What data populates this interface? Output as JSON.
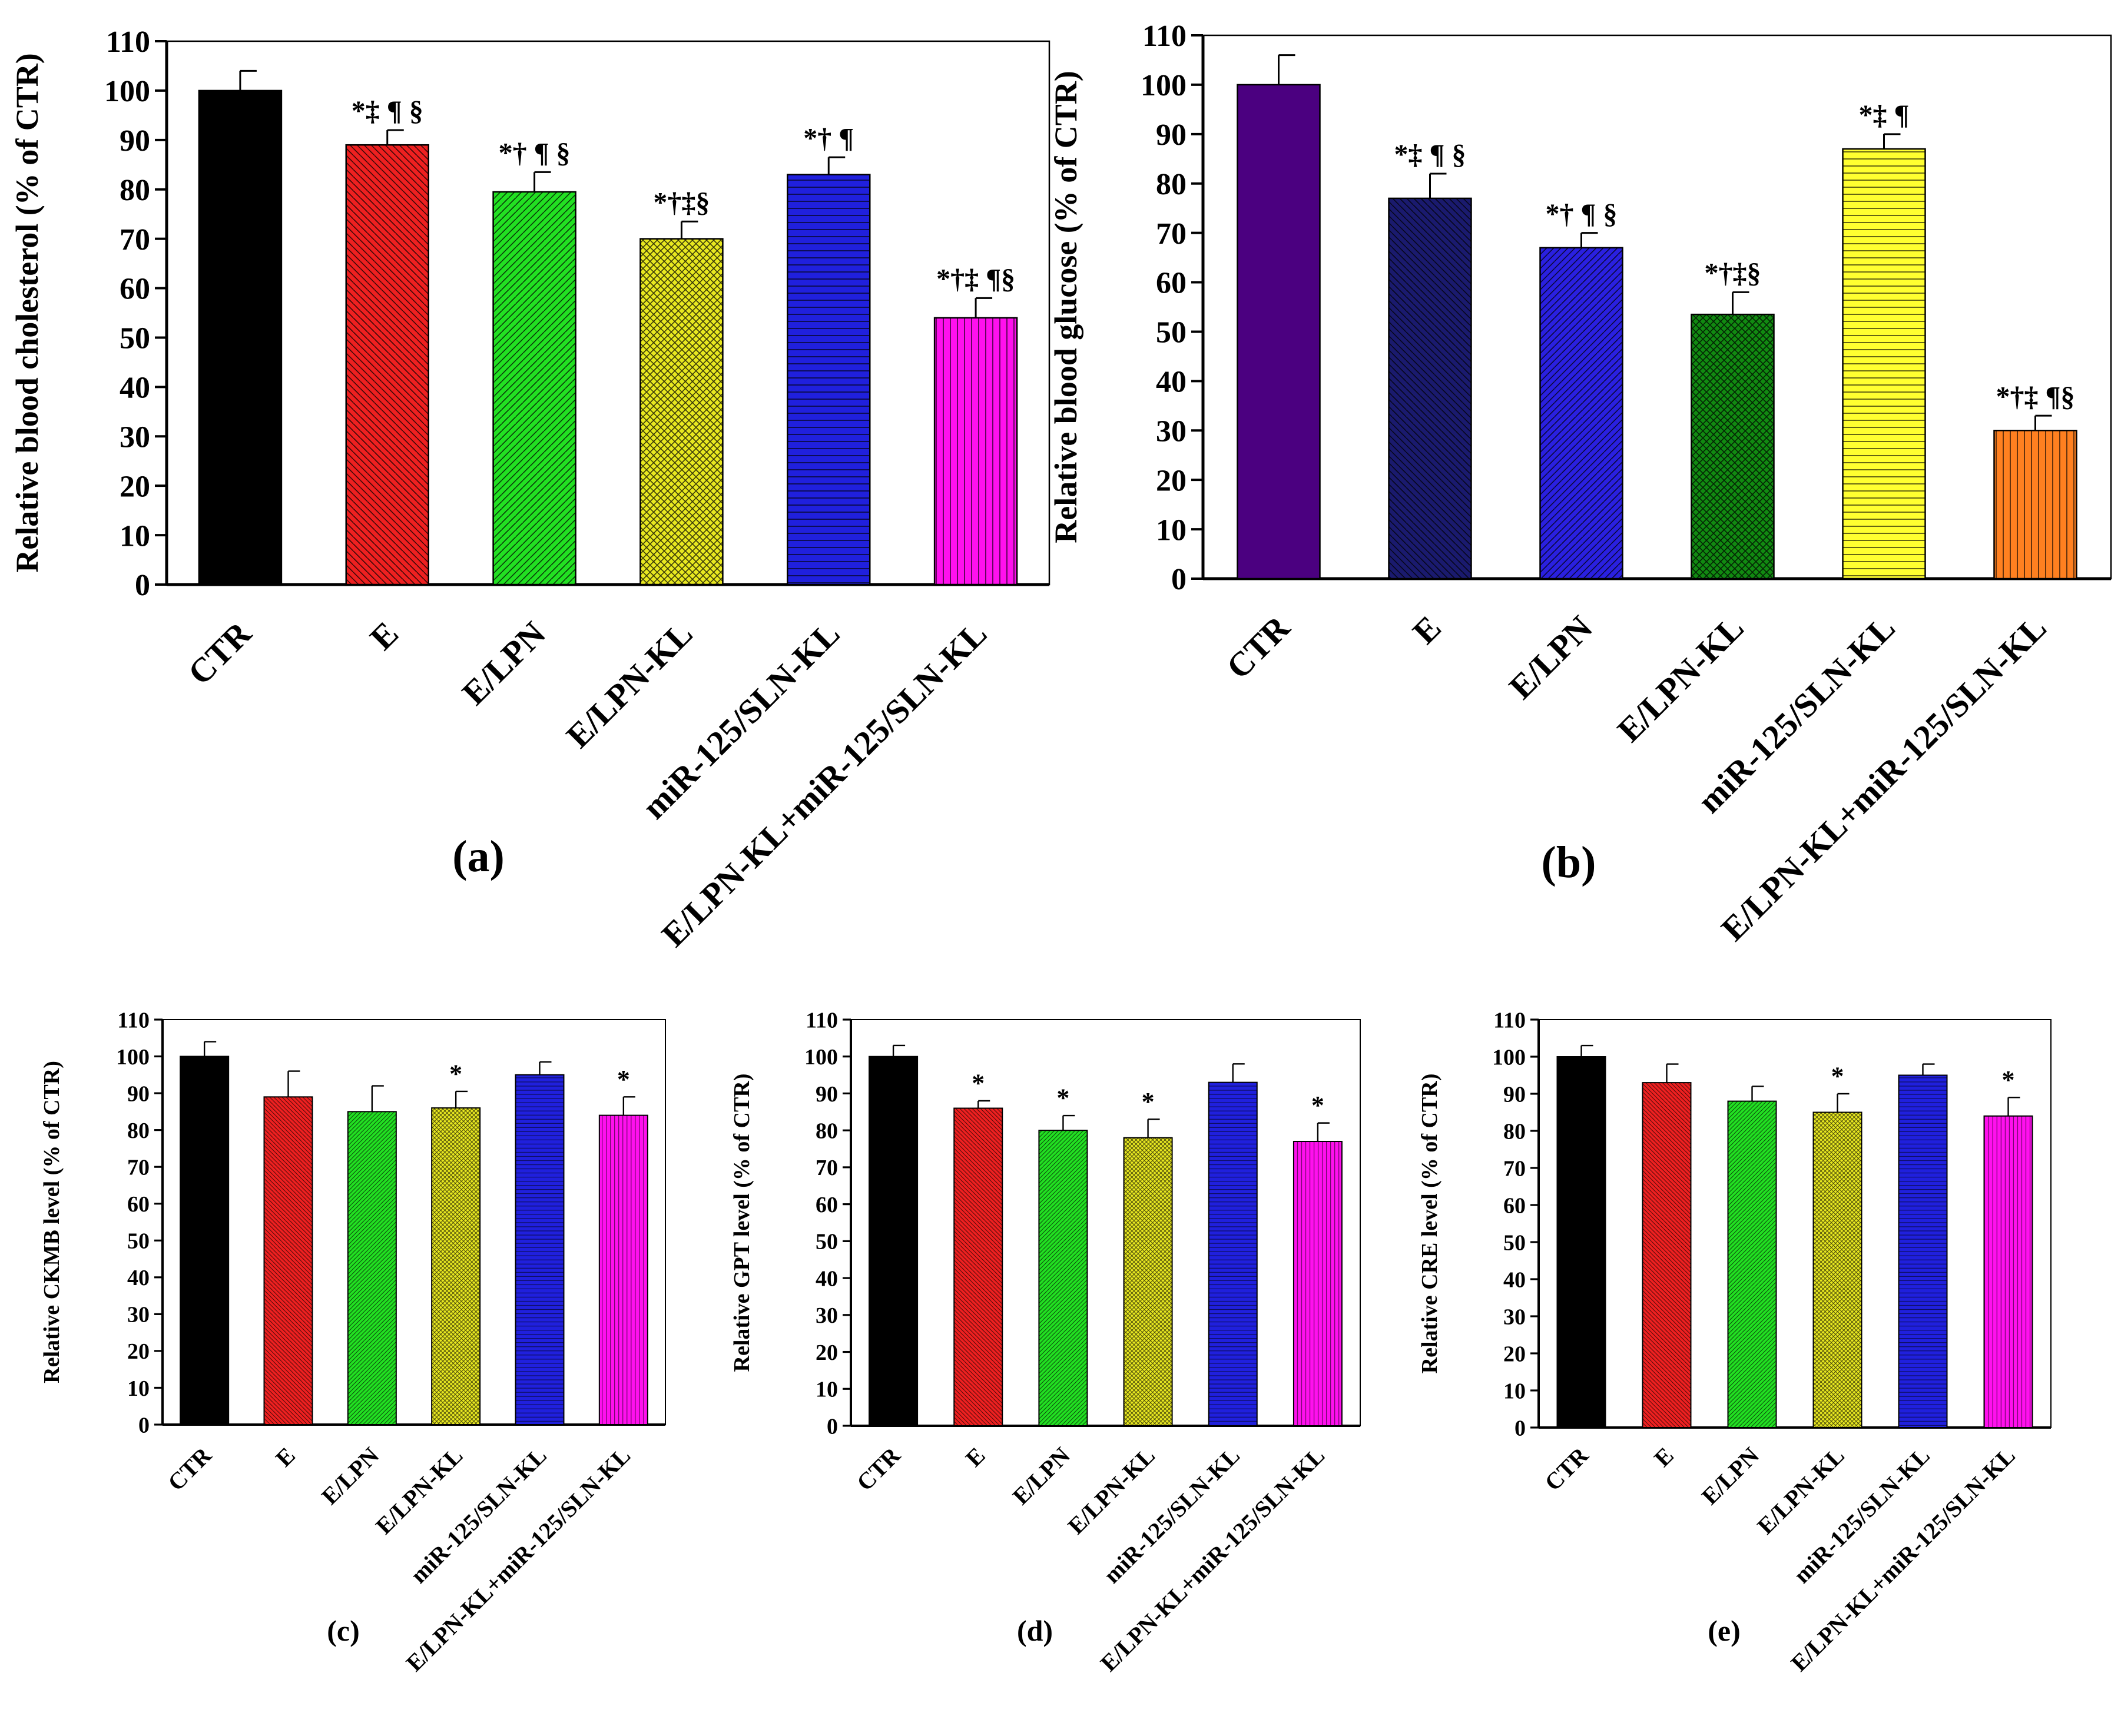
{
  "chart_data": [
    {
      "id": "a",
      "panel_label": "(a)",
      "type": "bar",
      "title": "",
      "xlabel": "",
      "ylabel": "Relative blood cholesterol (% of CTR)",
      "ylim": [
        0,
        110
      ],
      "yticks": [
        "0",
        "10",
        "20",
        "30",
        "40",
        "50",
        "60",
        "70",
        "80",
        "90",
        "100",
        "110"
      ],
      "categories": [
        "CTR",
        "E",
        "E/LPN",
        "E/LPN-KL",
        "miR-125/SLN-KL",
        "E/LPN-KL+miR-125/SLN-KL"
      ],
      "values": [
        100,
        89,
        79.5,
        70,
        83,
        54
      ],
      "errors": [
        4,
        3,
        4,
        3.5,
        3.5,
        4
      ],
      "annotations": [
        "",
        "*‡ ¶ §",
        "*† ¶ §",
        "*†‡§",
        "*† ¶",
        "*†‡ ¶§"
      ],
      "colors": [
        "#000000",
        "#ee2020",
        "#22e022",
        "#e8e820",
        "#2020dd",
        "#ff10ee"
      ],
      "patterns": [
        "solid",
        "diag-back",
        "diag-fwd",
        "crosshatch",
        "horizontal",
        "vertical"
      ]
    },
    {
      "id": "b",
      "panel_label": "(b)",
      "type": "bar",
      "title": "",
      "xlabel": "",
      "ylabel": "Relative blood glucose (% of CTR)",
      "ylim": [
        0,
        110
      ],
      "yticks": [
        "0",
        "10",
        "20",
        "30",
        "40",
        "50",
        "60",
        "70",
        "80",
        "90",
        "100",
        "110"
      ],
      "categories": [
        "CTR",
        "E",
        "E/LPN",
        "E/LPN-KL",
        "miR-125/SLN-KL",
        "E/LPN-KL+miR-125/SLN-KL"
      ],
      "values": [
        100,
        77,
        67,
        53.5,
        87,
        30
      ],
      "errors": [
        6,
        5,
        3,
        4.5,
        3,
        3
      ],
      "annotations": [
        "",
        "*‡ ¶ §",
        "*† ¶ §",
        "*†‡§",
        "*‡ ¶",
        "*†‡ ¶§"
      ],
      "colors": [
        "#4b0080",
        "#1a1a6e",
        "#2a20e0",
        "#118a11",
        "#ffff30",
        "#ff8020"
      ],
      "patterns": [
        "solid",
        "diag-back",
        "diag-fwd",
        "crosshatch",
        "horizontal",
        "vertical"
      ]
    },
    {
      "id": "c",
      "panel_label": "(c)",
      "type": "bar",
      "title": "",
      "xlabel": "",
      "ylabel": "Relative CKMB level (% of CTR)",
      "ylim": [
        0,
        110
      ],
      "yticks": [
        "0",
        "10",
        "20",
        "30",
        "40",
        "50",
        "60",
        "70",
        "80",
        "90",
        "100",
        "110"
      ],
      "categories": [
        "CTR",
        "E",
        "E/LPN",
        "E/LPN-KL",
        "miR-125/SLN-KL",
        "E/LPN-KL+miR-125/SLN-KL"
      ],
      "values": [
        100,
        89,
        85,
        86,
        95,
        84
      ],
      "errors": [
        4,
        7,
        7,
        4.5,
        3.5,
        5
      ],
      "annotations": [
        "",
        "",
        "",
        "*",
        "",
        "*"
      ],
      "colors": [
        "#000000",
        "#ee2020",
        "#22e022",
        "#e8e820",
        "#2020dd",
        "#ff10ee"
      ],
      "patterns": [
        "solid",
        "diag-back",
        "diag-fwd",
        "crosshatch",
        "horizontal",
        "vertical"
      ]
    },
    {
      "id": "d",
      "panel_label": "(d)",
      "type": "bar",
      "title": "",
      "xlabel": "",
      "ylabel": "Relative GPT level (% of CTR)",
      "ylim": [
        0,
        110
      ],
      "yticks": [
        "0",
        "10",
        "20",
        "30",
        "40",
        "50",
        "60",
        "70",
        "80",
        "90",
        "100",
        "110"
      ],
      "categories": [
        "CTR",
        "E",
        "E/LPN",
        "E/LPN-KL",
        "miR-125/SLN-KL",
        "E/LPN-KL+miR-125/SLN-KL"
      ],
      "values": [
        100,
        86,
        80,
        78,
        93,
        77
      ],
      "errors": [
        3,
        2,
        4,
        5,
        5,
        5
      ],
      "annotations": [
        "",
        "*",
        "*",
        "*",
        "",
        "*"
      ],
      "colors": [
        "#000000",
        "#ee2020",
        "#22e022",
        "#e8e820",
        "#2020dd",
        "#ff10ee"
      ],
      "patterns": [
        "solid",
        "diag-back",
        "diag-fwd",
        "crosshatch",
        "horizontal",
        "vertical"
      ]
    },
    {
      "id": "e",
      "panel_label": "(e)",
      "type": "bar",
      "title": "",
      "xlabel": "",
      "ylabel": "Relative CRE level (% of CTR)",
      "ylim": [
        0,
        110
      ],
      "yticks": [
        "0",
        "10",
        "20",
        "30",
        "40",
        "50",
        "60",
        "70",
        "80",
        "90",
        "100",
        "110"
      ],
      "categories": [
        "CTR",
        "E",
        "E/LPN",
        "E/LPN-KL",
        "miR-125/SLN-KL",
        "E/LPN-KL+miR-125/SLN-KL"
      ],
      "values": [
        100,
        93,
        88,
        85,
        95,
        84
      ],
      "errors": [
        3,
        5,
        4,
        5,
        3,
        5
      ],
      "annotations": [
        "",
        "",
        "",
        "*",
        "",
        "*"
      ],
      "colors": [
        "#000000",
        "#ee2020",
        "#22e022",
        "#e8e820",
        "#2020dd",
        "#ff10ee"
      ],
      "patterns": [
        "solid",
        "diag-back",
        "diag-fwd",
        "crosshatch",
        "horizontal",
        "vertical"
      ]
    }
  ]
}
